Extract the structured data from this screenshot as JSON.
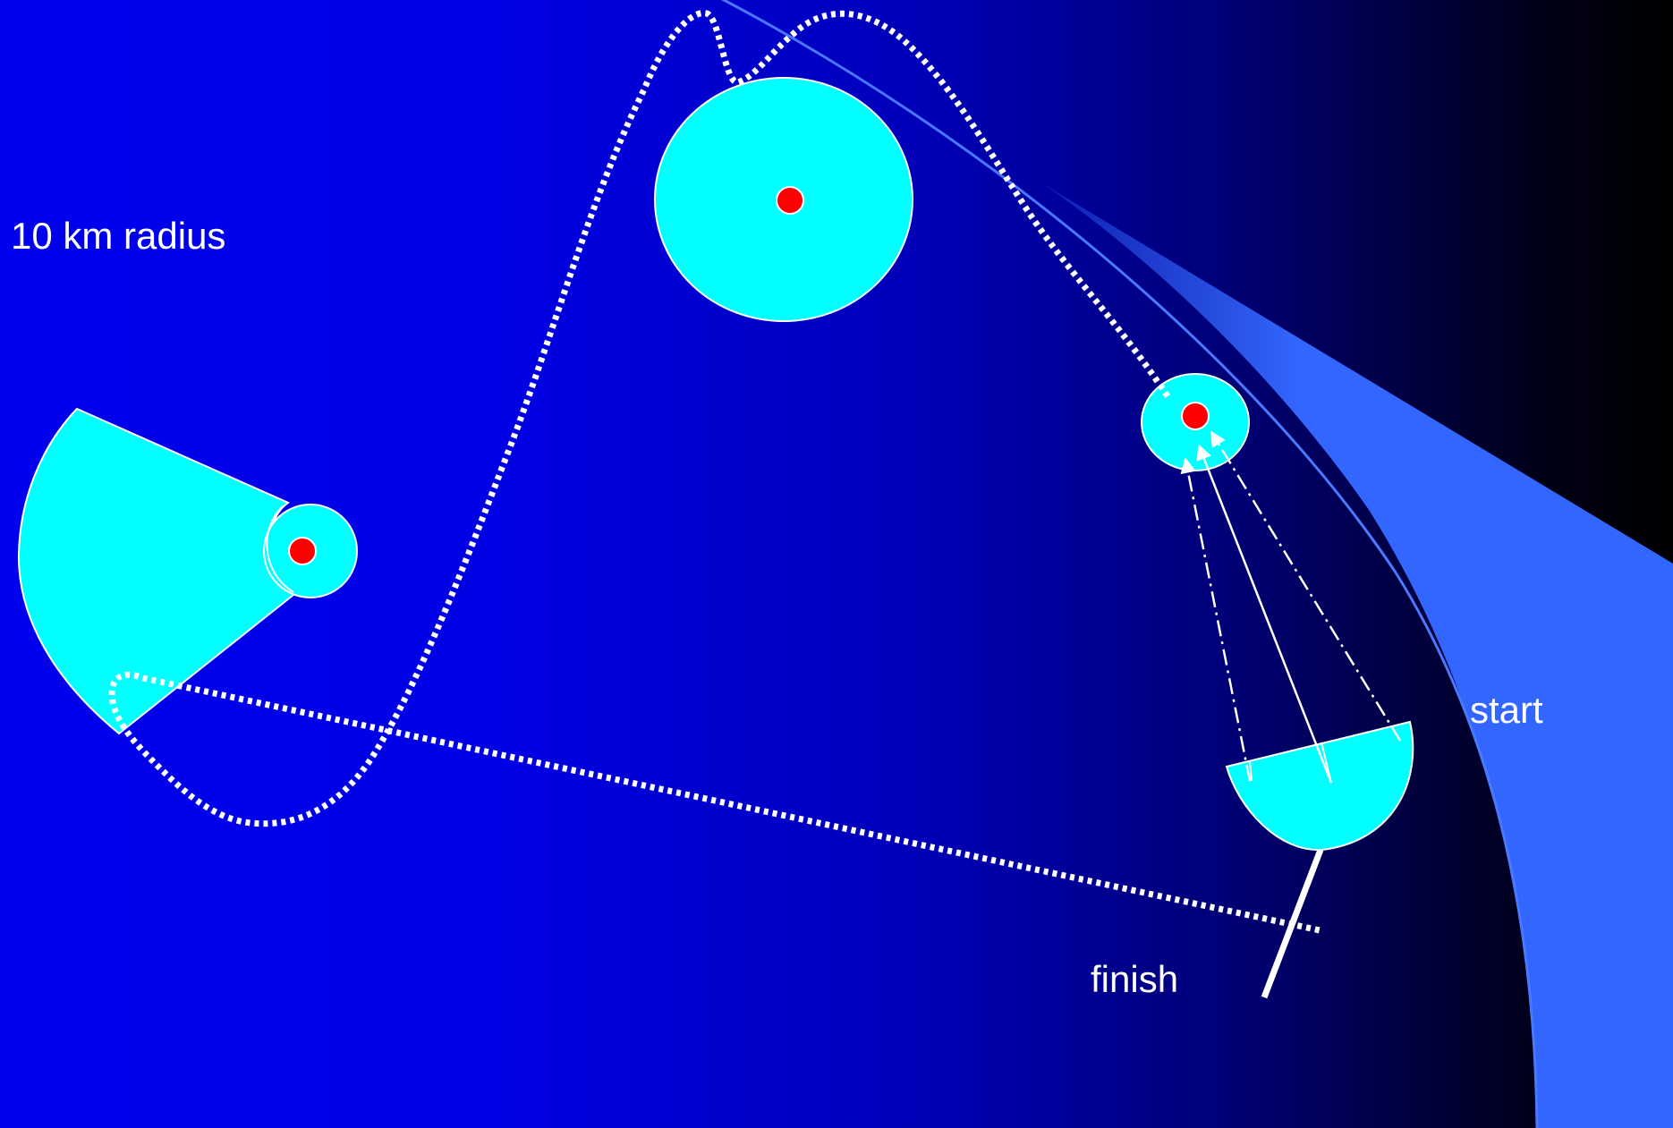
{
  "labels": {
    "radius": "10 km radius",
    "start": "start",
    "finish": "finish"
  },
  "colors": {
    "zone_fill": "#00ffff",
    "zone_outline": "#ffffff",
    "turnpoint": "#ff0000",
    "start_band": "#3366ff",
    "track": "#ffffff"
  }
}
